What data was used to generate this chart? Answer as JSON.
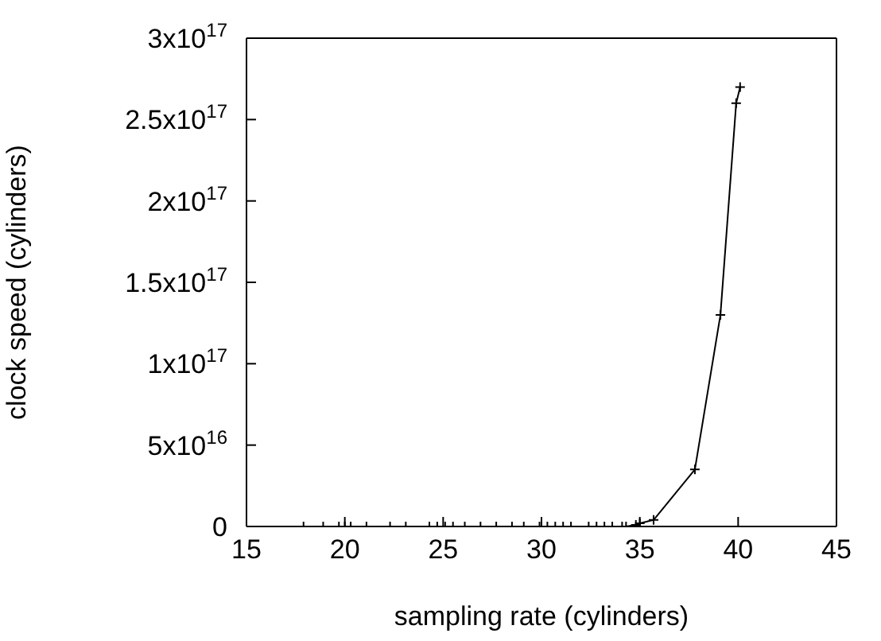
{
  "chart_data": {
    "type": "line",
    "xlabel": "sampling rate (cylinders)",
    "ylabel": "clock speed (cylinders)",
    "x": [
      17.9,
      18.9,
      19.7,
      20.0,
      20.3,
      21.1,
      22.3,
      23.1,
      24.3,
      24.7,
      25.1,
      25.5,
      26.1,
      26.9,
      27.7,
      28.5,
      29.1,
      29.9,
      30.3,
      30.7,
      31.1,
      31.5,
      32.4,
      32.8,
      33.2,
      33.6,
      34.1,
      34.3,
      34.8,
      35.0,
      35.7,
      37.8,
      39.1,
      39.9,
      40.1
    ],
    "series": [
      {
        "color": "#000000",
        "values": [
          0,
          0,
          0,
          0,
          0,
          0,
          0,
          0,
          0,
          0,
          0,
          0,
          0,
          0,
          0,
          0,
          0,
          0,
          0,
          0,
          0,
          0,
          0,
          0,
          0,
          0,
          0,
          0,
          1000000000000000.0,
          2000000000000000.0,
          4000000000000000.0,
          3.5e+16,
          1.3e+17,
          2.6e+17,
          2.7e+17
        ]
      }
    ],
    "xlim": [
      15,
      45
    ],
    "xticks": [
      15,
      20,
      25,
      30,
      35,
      40,
      45
    ],
    "ylim": [
      0,
      3e+17
    ],
    "yticks": [
      0,
      {
        "value": 5e+16,
        "label": "5x10$^{16}$"
      },
      {
        "value": 1e+17,
        "label": "1x10$^{17}$"
      },
      {
        "value": 1.5e+17,
        "label": "1.5x10$^{17}$"
      },
      {
        "value": 2e+17,
        "label": "2x10$^{17}$"
      },
      {
        "value": 2.5e+17,
        "label": "2.5x10$^{17}$"
      },
      {
        "value": 3e+17,
        "label": "3x10$^{17}$"
      }
    ],
    "marker": "cross",
    "line_style": "solid"
  }
}
